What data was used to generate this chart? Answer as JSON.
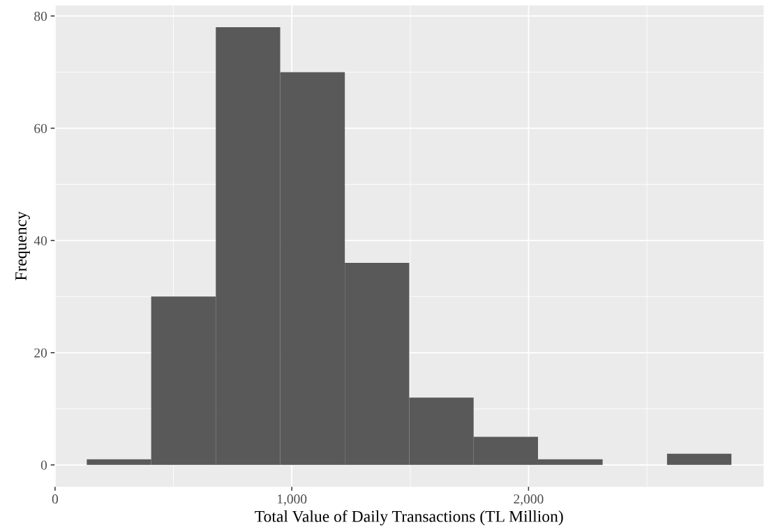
{
  "chart_data": {
    "type": "histogram",
    "xlabel": "Total Value of Daily Transactions (TL Million)",
    "ylabel": "Frequency",
    "bins": [
      134,
      406,
      679,
      951,
      1224,
      1496,
      1768,
      2040,
      2313,
      2585,
      2857
    ],
    "values": [
      1,
      30,
      78,
      70,
      36,
      12,
      5,
      1,
      0,
      2
    ],
    "color": "#595959",
    "xlim": [
      -2,
      2993
    ],
    "ylim": [
      -3.9,
      81.9
    ],
    "xticks": [
      0,
      {
        "value": 1000,
        "label": "1,000"
      },
      {
        "value": 2000,
        "label": "2,000"
      }
    ],
    "yticks": [
      0,
      20,
      40,
      60,
      80
    ],
    "grid": true
  }
}
